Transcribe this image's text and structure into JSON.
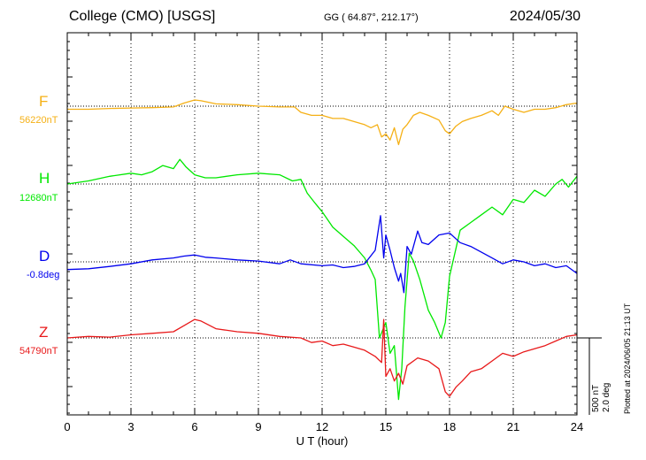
{
  "header": {
    "station": "College (CMO)  [USGS]",
    "coords": "GG ( 64.87°, 212.17°)",
    "date": "2024/05/30"
  },
  "scale_note": {
    "line1": "500 nT",
    "line2": "2.0 deg"
  },
  "plotted_note": "Plotted at 2024/06/05 21:13 UT",
  "chart_data": {
    "type": "line",
    "title": "College (CMO)  [USGS]",
    "xlabel": "U T (hour)",
    "xlim": [
      0,
      24
    ],
    "x_ticks": [
      0,
      3,
      6,
      9,
      12,
      15,
      18,
      21,
      24
    ],
    "tick_labels": [
      "0",
      "3",
      "6",
      "9",
      "12",
      "15",
      "18",
      "21",
      "24"
    ],
    "grid": true,
    "scale_bar": {
      "nT": 500,
      "deg": 2.0
    },
    "series": [
      {
        "name": "F",
        "base_label": "56220nT",
        "color": "#F5B015",
        "x": [
          0,
          1,
          2,
          3,
          4,
          5,
          5.5,
          6,
          6.3,
          7,
          8,
          9,
          10,
          10.7,
          11,
          11.5,
          12,
          12.5,
          13,
          13.5,
          14,
          14.3,
          14.6,
          14.8,
          15.0,
          15.2,
          15.4,
          15.6,
          15.8,
          16.0,
          16.3,
          16.6,
          17.0,
          17.5,
          17.8,
          18.0,
          18.3,
          18.6,
          19.0,
          19.5,
          20.0,
          20.3,
          20.6,
          21.0,
          21.5,
          22.0,
          22.5,
          23.0,
          23.5,
          24.0
        ],
        "values": [
          -20,
          -20,
          -15,
          -12,
          -10,
          -5,
          20,
          40,
          35,
          15,
          10,
          0,
          -5,
          -5,
          -40,
          -60,
          -60,
          -80,
          -80,
          -100,
          -120,
          -140,
          -120,
          -200,
          -180,
          -220,
          -140,
          -250,
          -150,
          -120,
          -60,
          -40,
          -60,
          -90,
          -160,
          -180,
          -130,
          -100,
          -80,
          -60,
          -30,
          -60,
          0,
          -20,
          -40,
          -20,
          -20,
          -10,
          10,
          20
        ]
      },
      {
        "name": "H",
        "base_label": "12680nT",
        "color": "#00E800",
        "x": [
          0,
          1,
          2,
          3,
          3.5,
          4,
          4.5,
          5.0,
          5.3,
          5.6,
          6.0,
          6.5,
          7,
          8,
          9,
          10,
          10.6,
          11,
          11.3,
          11.7,
          12,
          12.5,
          13,
          13.5,
          14,
          14.3,
          14.5,
          14.7,
          14.85,
          15.0,
          15.2,
          15.4,
          15.6,
          15.75,
          15.9,
          16.1,
          16.3,
          16.6,
          17.0,
          17.3,
          17.6,
          17.8,
          18.0,
          18.5,
          19.0,
          19.5,
          20.0,
          20.5,
          21.0,
          21.5,
          22.0,
          22.5,
          23.0,
          23.3,
          23.6,
          24.0
        ],
        "values": [
          0,
          20,
          50,
          70,
          60,
          80,
          120,
          100,
          160,
          110,
          60,
          40,
          40,
          60,
          70,
          60,
          20,
          30,
          -60,
          -130,
          -180,
          -280,
          -340,
          -400,
          -480,
          -560,
          -620,
          -1000,
          -950,
          -900,
          -1100,
          -1050,
          -1400,
          -1200,
          -800,
          -450,
          -500,
          -620,
          -820,
          -900,
          -1000,
          -900,
          -600,
          -300,
          -250,
          -200,
          -150,
          -200,
          -100,
          -120,
          -40,
          -80,
          0,
          30,
          -20,
          50
        ]
      },
      {
        "name": "D",
        "base_label": "-0.8deg",
        "color": "#0000EE",
        "x": [
          0,
          1,
          2,
          3,
          4,
          5,
          5.5,
          6,
          6.5,
          7,
          8,
          9,
          10,
          10.5,
          11,
          12,
          12.5,
          13,
          13.5,
          14,
          14.5,
          14.75,
          14.9,
          15.0,
          15.2,
          15.4,
          15.6,
          15.7,
          15.85,
          16.0,
          16.2,
          16.5,
          16.7,
          17.0,
          17.5,
          18.0,
          18.5,
          19.0,
          19.5,
          20.0,
          20.5,
          21.0,
          21.5,
          22.0,
          22.5,
          23.0,
          23.5,
          24.0
        ],
        "values": [
          -0.2,
          -0.18,
          -0.12,
          -0.05,
          0.05,
          0.1,
          0.15,
          0.18,
          0.12,
          0.1,
          0.05,
          0.02,
          -0.05,
          0.05,
          -0.05,
          -0.1,
          -0.08,
          -0.15,
          -0.12,
          -0.05,
          0.3,
          1.2,
          0.1,
          0.7,
          0.3,
          -0.15,
          -0.5,
          -0.3,
          -0.8,
          0.4,
          0.2,
          0.8,
          0.5,
          0.45,
          0.7,
          0.75,
          0.5,
          0.4,
          0.25,
          0.1,
          -0.05,
          0.05,
          0.0,
          -0.1,
          -0.05,
          -0.15,
          -0.1,
          -0.3
        ]
      },
      {
        "name": "Z",
        "base_label": "54790nT",
        "color": "#E8191A",
        "x": [
          0,
          1,
          2,
          3,
          4,
          5,
          5.5,
          6,
          6.3,
          7,
          8,
          9,
          10,
          11,
          11.5,
          12,
          12.5,
          13,
          13.5,
          14,
          14.5,
          14.8,
          14.9,
          15.0,
          15.2,
          15.4,
          15.6,
          15.8,
          16.0,
          16.5,
          17.0,
          17.5,
          17.8,
          18.0,
          18.3,
          18.6,
          19.0,
          19.5,
          20.0,
          20.5,
          21.0,
          21.5,
          22.0,
          22.5,
          23.0,
          23.5,
          24.0
        ],
        "values": [
          0,
          10,
          5,
          20,
          30,
          40,
          80,
          120,
          110,
          60,
          40,
          30,
          10,
          0,
          -30,
          -20,
          -50,
          -40,
          -60,
          -80,
          -120,
          -160,
          120,
          -250,
          -200,
          -280,
          -230,
          -300,
          -180,
          -130,
          -150,
          -200,
          -350,
          -380,
          -320,
          -280,
          -220,
          -200,
          -150,
          -100,
          -120,
          -90,
          -70,
          -50,
          -20,
          10,
          20
        ]
      }
    ]
  }
}
